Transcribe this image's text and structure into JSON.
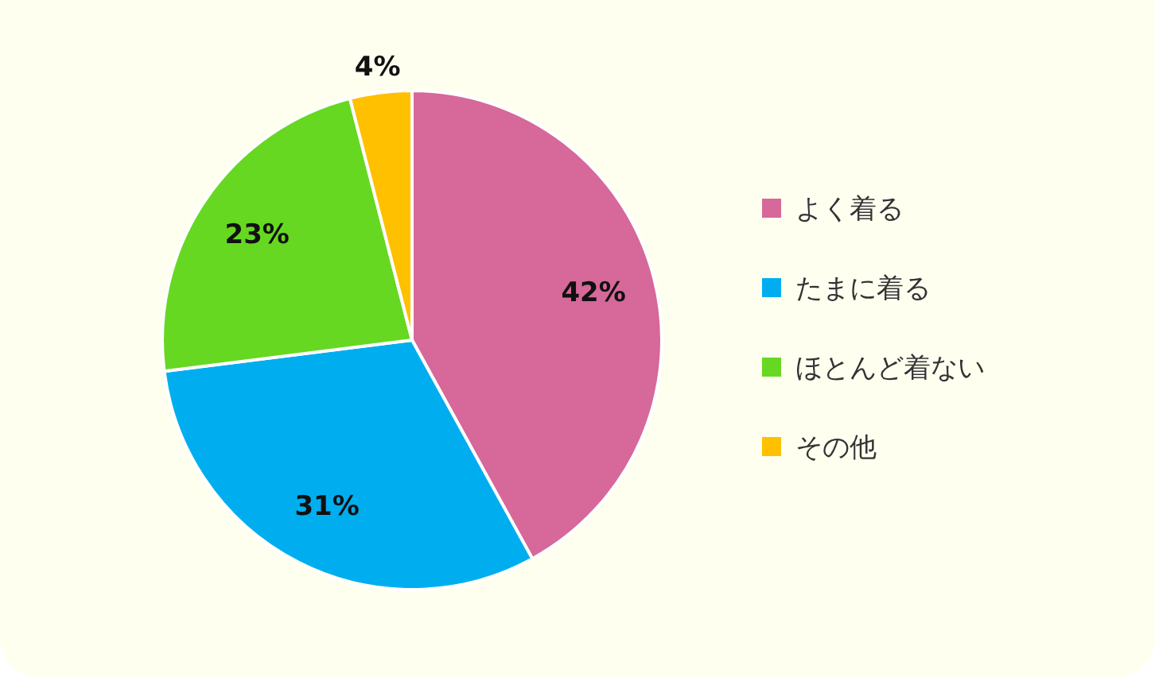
{
  "chart_data": {
    "type": "pie",
    "categories": [
      "よく着る",
      "たまに着る",
      "ほとんど着ない",
      "その他"
    ],
    "values": [
      42,
      31,
      23,
      4
    ],
    "colors": [
      "#d6689a",
      "#00aeef",
      "#66d822",
      "#ffc000"
    ],
    "value_labels": [
      "42%",
      "31%",
      "23%",
      "4%"
    ],
    "legend": "right"
  }
}
